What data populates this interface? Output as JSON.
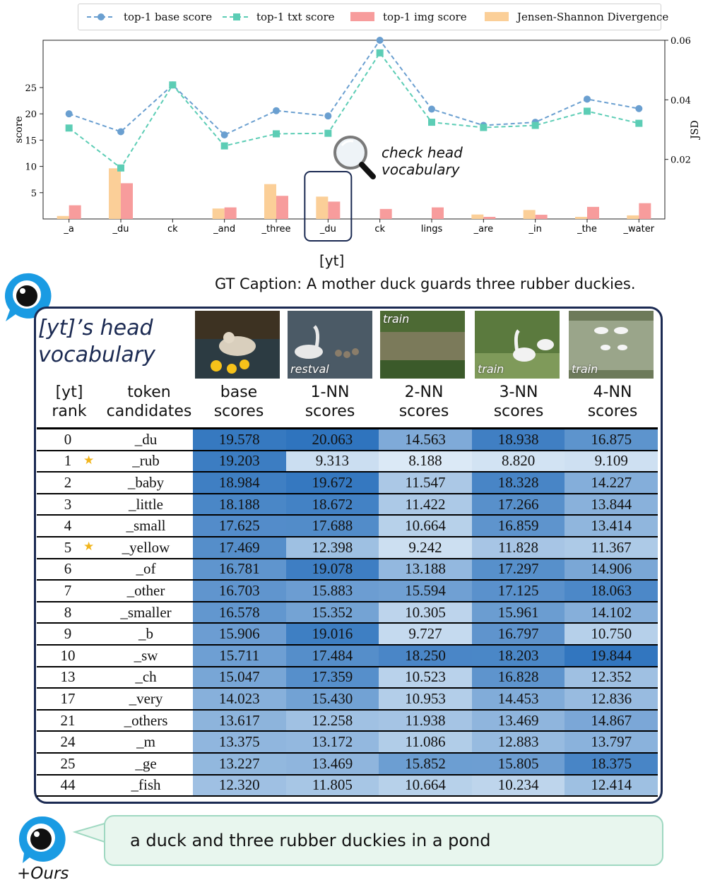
{
  "legend": {
    "base": "top-1 base score",
    "txt": "top-1 txt score",
    "img": "top-1 img score",
    "jsd": "Jensen-Shannon Divergence"
  },
  "colors": {
    "base": "#6a9fd0",
    "txt": "#5ccdb5",
    "img": "#f79c9c",
    "jsd": "#fbcf98"
  },
  "chart_data": {
    "type": "line",
    "categories": [
      "_a",
      "_du",
      "ck",
      "_and",
      "_three",
      "_du",
      "ck",
      "lings",
      "_are",
      "_in",
      "_the",
      "_water"
    ],
    "series": [
      {
        "name": "top-1 base score",
        "kind": "line",
        "axis": "left",
        "values": [
          20.0,
          16.6,
          25.5,
          16.0,
          20.6,
          19.6,
          34.0,
          20.9,
          17.8,
          18.4,
          22.8,
          21.0
        ]
      },
      {
        "name": "top-1 txt score",
        "kind": "line",
        "axis": "left",
        "values": [
          17.3,
          9.7,
          25.5,
          13.9,
          16.2,
          16.3,
          31.6,
          18.4,
          17.4,
          17.8,
          20.5,
          18.2
        ]
      },
      {
        "name": "top-1 img score",
        "kind": "bar",
        "axis": "left",
        "values": [
          2.6,
          6.8,
          0,
          2.2,
          4.4,
          3.3,
          1.9,
          2.2,
          0.4,
          0.8,
          2.3,
          3.0
        ]
      },
      {
        "name": "Jensen-Shannon Divergence",
        "kind": "bar",
        "axis": "right",
        "values": [
          0.001,
          0.017,
          0,
          0.0035,
          0.0117,
          0.0075,
          0,
          0,
          0.0015,
          0.003,
          0.0007,
          0.0012
        ]
      }
    ],
    "ylabel": "score",
    "y2label": "JSD",
    "ylim": [
      0,
      34
    ],
    "y2lim": [
      0,
      0.06
    ],
    "yticks": [
      "5",
      "10",
      "15",
      "20",
      "25"
    ],
    "y2ticks": [
      "0.02",
      "0.04",
      "0.06"
    ],
    "highlight_index": 5,
    "grid": false
  },
  "annotation": {
    "check_line1": "check head",
    "check_line2": "vocabulary"
  },
  "highlight_label": "[yt]",
  "gt_caption": "GT Caption: A mother duck guards three rubber duckies.",
  "head_title": {
    "line1": "[yt]’s head",
    "line2": "vocabulary"
  },
  "thumbnails": [
    {
      "label": ""
    },
    {
      "label": "restval"
    },
    {
      "label": "train"
    },
    {
      "label": "train"
    },
    {
      "label": "train"
    }
  ],
  "table": {
    "headers": [
      {
        "line1": "[yt]",
        "line2": "rank"
      },
      {
        "line1": "token",
        "line2": "candidates"
      },
      {
        "line1": "base",
        "line2": "scores"
      },
      {
        "line1": "1-NN",
        "line2": "scores"
      },
      {
        "line1": "2-NN",
        "line2": "scores"
      },
      {
        "line1": "3-NN",
        "line2": "scores"
      },
      {
        "line1": "4-NN",
        "line2": "scores"
      }
    ],
    "rows": [
      {
        "rank": "0",
        "star": false,
        "token": "_du",
        "scores": [
          "19.578",
          "20.063",
          "14.563",
          "18.938",
          "16.875"
        ]
      },
      {
        "rank": "1",
        "star": true,
        "token": "_rub",
        "scores": [
          "19.203",
          "9.313",
          "8.188",
          "8.820",
          "9.109"
        ]
      },
      {
        "rank": "2",
        "star": false,
        "token": "_baby",
        "scores": [
          "18.984",
          "19.672",
          "11.547",
          "18.328",
          "14.227"
        ]
      },
      {
        "rank": "3",
        "star": false,
        "token": "_little",
        "scores": [
          "18.188",
          "18.672",
          "11.422",
          "17.266",
          "13.844"
        ]
      },
      {
        "rank": "4",
        "star": false,
        "token": "_small",
        "scores": [
          "17.625",
          "17.688",
          "10.664",
          "16.859",
          "13.414"
        ]
      },
      {
        "rank": "5",
        "star": true,
        "token": "_yellow",
        "scores": [
          "17.469",
          "12.398",
          "9.242",
          "11.828",
          "11.367"
        ]
      },
      {
        "rank": "6",
        "star": false,
        "token": "_of",
        "scores": [
          "16.781",
          "19.078",
          "13.188",
          "17.297",
          "14.906"
        ]
      },
      {
        "rank": "7",
        "star": false,
        "token": "_other",
        "scores": [
          "16.703",
          "15.883",
          "15.594",
          "17.125",
          "18.063"
        ]
      },
      {
        "rank": "8",
        "star": false,
        "token": "_smaller",
        "scores": [
          "16.578",
          "15.352",
          "10.305",
          "15.961",
          "14.102"
        ]
      },
      {
        "rank": "9",
        "star": false,
        "token": "_b",
        "scores": [
          "15.906",
          "19.016",
          "9.727",
          "16.797",
          "10.750"
        ]
      },
      {
        "rank": "10",
        "star": false,
        "token": "_sw",
        "scores": [
          "15.711",
          "17.484",
          "18.250",
          "18.203",
          "19.844"
        ]
      },
      {
        "rank": "13",
        "star": false,
        "token": "_ch",
        "scores": [
          "15.047",
          "17.359",
          "10.523",
          "16.828",
          "12.352"
        ]
      },
      {
        "rank": "17",
        "star": false,
        "token": "_very",
        "scores": [
          "14.023",
          "15.430",
          "10.953",
          "14.453",
          "12.836"
        ]
      },
      {
        "rank": "21",
        "star": false,
        "token": "_others",
        "scores": [
          "13.617",
          "12.258",
          "11.938",
          "13.469",
          "14.867"
        ]
      },
      {
        "rank": "24",
        "star": false,
        "token": "_m",
        "scores": [
          "13.375",
          "13.172",
          "11.086",
          "12.883",
          "13.797"
        ]
      },
      {
        "rank": "25",
        "star": false,
        "token": "_ge",
        "scores": [
          "13.227",
          "13.469",
          "15.852",
          "15.805",
          "18.375"
        ]
      },
      {
        "rank": "44",
        "star": false,
        "token": "_fish",
        "scores": [
          "12.320",
          "11.805",
          "10.664",
          "10.234",
          "12.414"
        ]
      }
    ]
  },
  "bubble_text": "a duck and three rubber duckies in a pond",
  "ours_label": "+Ours"
}
